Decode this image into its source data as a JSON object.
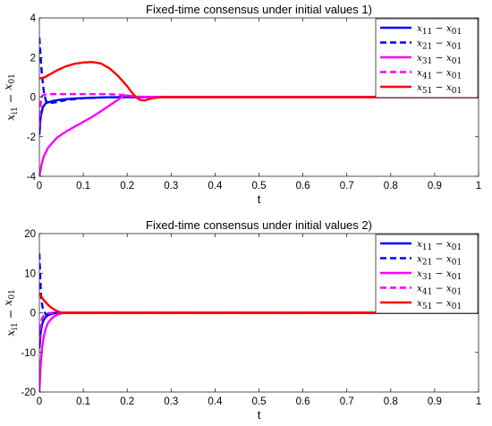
{
  "chart_data": [
    {
      "type": "line",
      "title": "Fixed-time consensus under initial values 1)",
      "xlabel": "t",
      "ylabel": {
        "base": "x",
        "sub1": "i1",
        "op": " − ",
        "base2": "x",
        "sub2": "01"
      },
      "xlim": [
        0,
        1
      ],
      "ylim": [
        -4,
        4
      ],
      "xticks": [
        0,
        0.1,
        0.2,
        0.3,
        0.4,
        0.5,
        0.6,
        0.7,
        0.8,
        0.9,
        1
      ],
      "yticks": [
        -4,
        -2,
        0,
        2,
        4
      ],
      "grid": false,
      "legend": "top-right",
      "series": [
        {
          "name": "x11 − x01",
          "label": {
            "a": "x",
            "as": "11",
            "b": "x",
            "bs": "01"
          },
          "color": "#0000ff",
          "dash": "solid",
          "x": [
            0,
            0.003,
            0.008,
            0.015,
            0.03,
            0.05,
            0.08,
            0.12,
            0.16,
            0.19,
            0.21,
            0.25,
            1
          ],
          "y": [
            -1.9,
            -1.0,
            -0.5,
            -0.3,
            -0.2,
            -0.12,
            -0.07,
            -0.03,
            -0.01,
            0.0,
            0.0,
            0.0,
            0.0
          ]
        },
        {
          "name": "x21 − x01",
          "label": {
            "a": "x",
            "as": "21",
            "b": "x",
            "bs": "01"
          },
          "color": "#0000ff",
          "dash": "dashed",
          "x": [
            0,
            0.003,
            0.006,
            0.01,
            0.015,
            0.025,
            0.04,
            0.06,
            0.1,
            0.14,
            0.18,
            0.21,
            0.25,
            1
          ],
          "y": [
            3.0,
            2.0,
            1.1,
            0.3,
            -0.2,
            -0.3,
            -0.25,
            -0.15,
            -0.06,
            -0.02,
            0.0,
            0.0,
            0.0,
            0.0
          ]
        },
        {
          "name": "x31 − x01",
          "label": {
            "a": "x",
            "as": "31",
            "b": "x",
            "bs": "01"
          },
          "color": "#ff00ff",
          "dash": "solid",
          "x": [
            0,
            0.005,
            0.01,
            0.02,
            0.04,
            0.06,
            0.08,
            0.1,
            0.12,
            0.14,
            0.16,
            0.18,
            0.19,
            0.2,
            0.22,
            0.25,
            1
          ],
          "y": [
            -4.0,
            -3.4,
            -3.0,
            -2.55,
            -2.05,
            -1.75,
            -1.5,
            -1.25,
            -1.0,
            -0.72,
            -0.42,
            -0.12,
            0.05,
            0.08,
            0.02,
            0.0,
            0.0
          ]
        },
        {
          "name": "x41 − x01",
          "label": {
            "a": "x",
            "as": "41",
            "b": "x",
            "bs": "01"
          },
          "color": "#ff00ff",
          "dash": "dashed",
          "x": [
            0,
            0.003,
            0.006,
            0.01,
            0.02,
            0.05,
            0.1,
            0.15,
            0.18,
            0.2,
            0.22,
            0.25,
            1
          ],
          "y": [
            -1.5,
            -0.3,
            0.05,
            0.12,
            0.15,
            0.15,
            0.15,
            0.15,
            0.13,
            0.08,
            0.03,
            0.0,
            0.0
          ]
        },
        {
          "name": "x51 − x01",
          "label": {
            "a": "x",
            "as": "51",
            "b": "x",
            "bs": "01"
          },
          "color": "#ff0000",
          "dash": "solid",
          "x": [
            0,
            0.01,
            0.02,
            0.04,
            0.06,
            0.08,
            0.1,
            0.12,
            0.14,
            0.16,
            0.18,
            0.2,
            0.21,
            0.22,
            0.23,
            0.24,
            0.25,
            0.26,
            0.28,
            0.3,
            1
          ],
          "y": [
            0.95,
            0.98,
            1.1,
            1.35,
            1.55,
            1.68,
            1.75,
            1.77,
            1.7,
            1.45,
            1.05,
            0.55,
            0.25,
            0.0,
            -0.15,
            -0.17,
            -0.1,
            -0.05,
            0.0,
            0.0,
            0.0
          ]
        }
      ]
    },
    {
      "type": "line",
      "title": "Fixed-time consensus under initial values 2)",
      "xlabel": "t",
      "ylabel": {
        "base": "x",
        "sub1": "i1",
        "op": " − ",
        "base2": "x",
        "sub2": "01"
      },
      "xlim": [
        0,
        1
      ],
      "ylim": [
        -20,
        20
      ],
      "xticks": [
        0,
        0.1,
        0.2,
        0.3,
        0.4,
        0.5,
        0.6,
        0.7,
        0.8,
        0.9,
        1
      ],
      "yticks": [
        -20,
        -10,
        0,
        10,
        20
      ],
      "grid": false,
      "legend": "top-right",
      "series": [
        {
          "name": "x11 − x01",
          "label": {
            "a": "x",
            "as": "11",
            "b": "x",
            "bs": "01"
          },
          "color": "#0000ff",
          "dash": "solid",
          "x": [
            0,
            0.003,
            0.006,
            0.01,
            0.015,
            0.02,
            0.03,
            0.04,
            0.05,
            1
          ],
          "y": [
            -9.0,
            -5.0,
            -3.0,
            -1.8,
            -1.0,
            -0.6,
            -0.2,
            -0.05,
            0.0,
            0.0
          ]
        },
        {
          "name": "x21 − x01",
          "label": {
            "a": "x",
            "as": "21",
            "b": "x",
            "bs": "01"
          },
          "color": "#0000ff",
          "dash": "dashed",
          "x": [
            0,
            0.002,
            0.004,
            0.007,
            0.01,
            0.015,
            0.02,
            0.03,
            0.04,
            1
          ],
          "y": [
            15.0,
            9.0,
            4.0,
            1.5,
            0.5,
            -0.5,
            -0.3,
            -0.1,
            0.0,
            0.0
          ]
        },
        {
          "name": "x31 − x01",
          "label": {
            "a": "x",
            "as": "31",
            "b": "x",
            "bs": "01"
          },
          "color": "#ff00ff",
          "dash": "solid",
          "x": [
            0,
            0.003,
            0.006,
            0.01,
            0.015,
            0.02,
            0.03,
            0.04,
            0.05,
            0.06,
            1
          ],
          "y": [
            -20.0,
            -13.0,
            -9.0,
            -6.0,
            -3.8,
            -2.5,
            -1.2,
            -0.5,
            -0.15,
            0.0,
            0.0
          ]
        },
        {
          "name": "x41 − x01",
          "label": {
            "a": "x",
            "as": "41",
            "b": "x",
            "bs": "01"
          },
          "color": "#ff00ff",
          "dash": "dashed",
          "x": [
            0,
            0.002,
            0.004,
            0.007,
            0.01,
            0.015,
            0.02,
            0.03,
            0.04,
            1
          ],
          "y": [
            -7.0,
            -4.0,
            -2.2,
            -1.2,
            -0.7,
            -0.3,
            -0.1,
            0.0,
            0.0,
            0.0
          ]
        },
        {
          "name": "x51 − x01",
          "label": {
            "a": "x",
            "as": "51",
            "b": "x",
            "bs": "01"
          },
          "color": "#ff0000",
          "dash": "solid",
          "x": [
            0,
            0.005,
            0.01,
            0.015,
            0.02,
            0.025,
            0.03,
            0.035,
            0.04,
            0.045,
            0.05,
            0.055,
            1
          ],
          "y": [
            5.0,
            4.0,
            3.2,
            2.6,
            2.0,
            1.5,
            1.1,
            0.75,
            0.45,
            0.2,
            0.05,
            0.0,
            0.0
          ]
        }
      ]
    }
  ]
}
